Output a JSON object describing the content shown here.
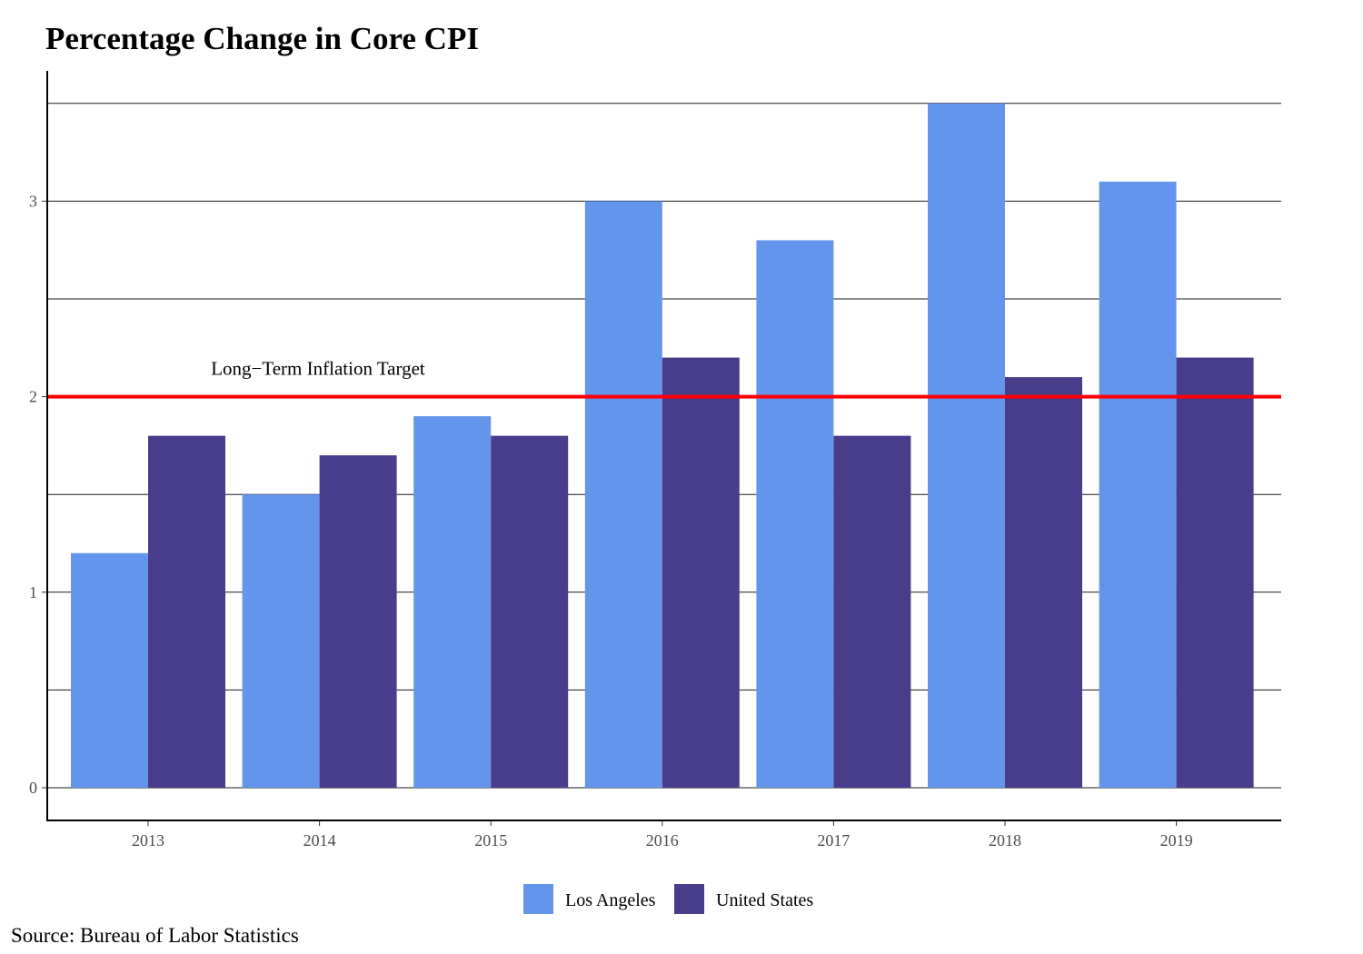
{
  "chart_data": {
    "type": "bar",
    "title": "Percentage Change in Core CPI",
    "xlabel": "",
    "ylabel": "",
    "categories": [
      "2013",
      "2014",
      "2015",
      "2016",
      "2017",
      "2018",
      "2019"
    ],
    "series": [
      {
        "name": "Los Angeles",
        "color": "#6495ED",
        "values": [
          1.2,
          1.5,
          1.9,
          3.0,
          2.8,
          3.5,
          3.1
        ]
      },
      {
        "name": "United States",
        "color": "#483D8B",
        "values": [
          1.8,
          1.7,
          1.8,
          2.2,
          1.8,
          2.1,
          2.2
        ]
      }
    ],
    "ylim": [
      0,
      3.5
    ],
    "yticks": [
      0,
      1,
      2,
      3
    ],
    "grid": true,
    "legend_position": "bottom",
    "reference_line": {
      "value": 2,
      "color": "#FF0000",
      "label": "Long−Term Inflation Target"
    },
    "source": "Source: Bureau of Labor Statistics"
  }
}
